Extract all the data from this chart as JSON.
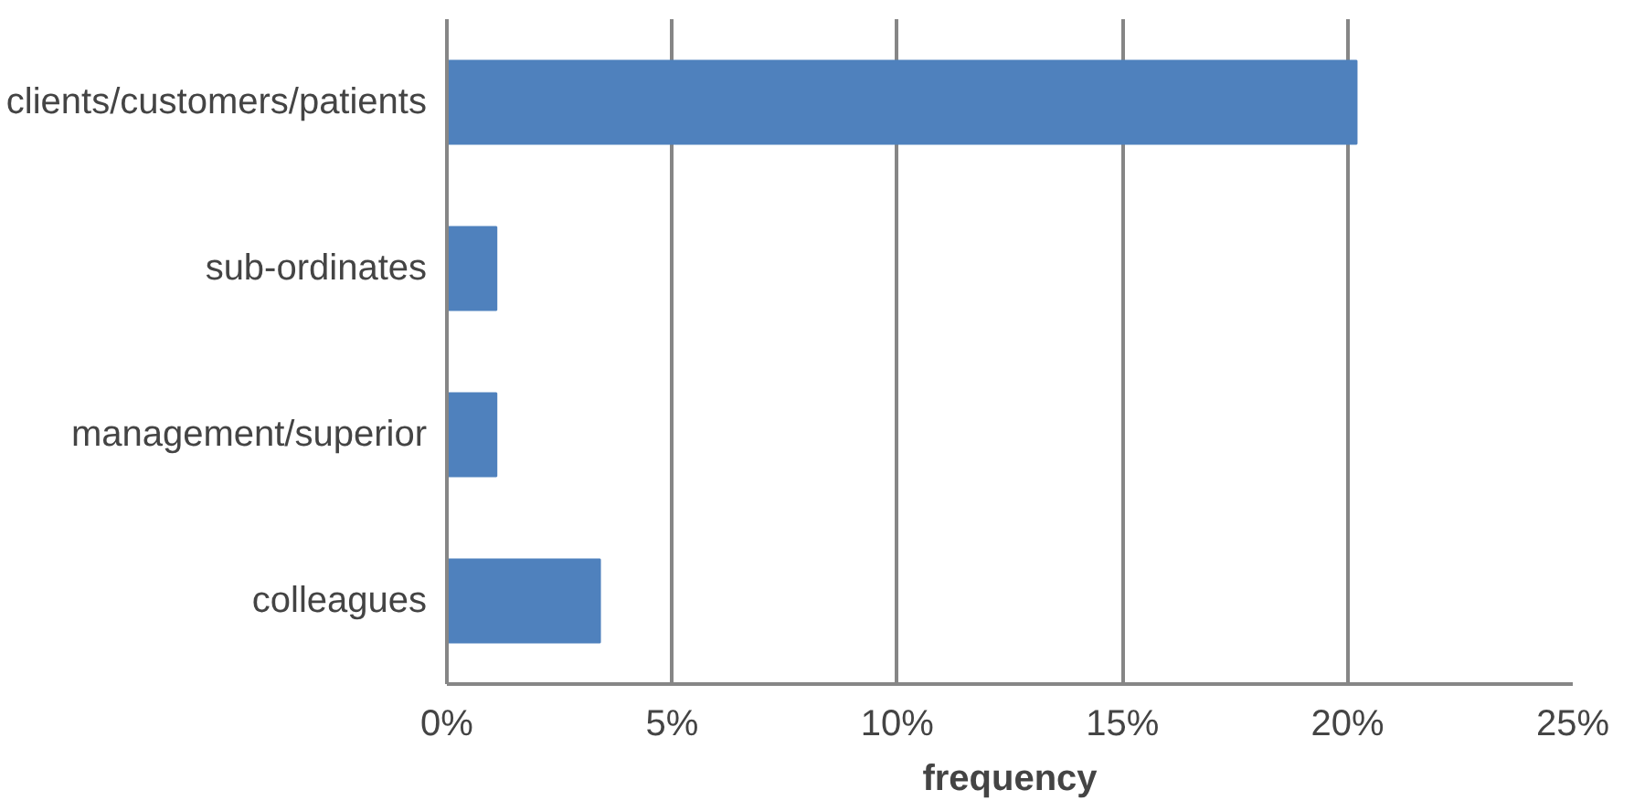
{
  "chart_data": {
    "type": "bar",
    "orientation": "horizontal",
    "xlabel": "frequency",
    "categories": [
      "clients/customers/patients",
      "sub-ordinates",
      "management/superior",
      "colleagues"
    ],
    "values": [
      20.2,
      1.1,
      1.1,
      3.4
    ],
    "color": "#4f81bd",
    "xlim": [
      0,
      25
    ],
    "xticks": [
      {
        "value": 0,
        "label": "0%"
      },
      {
        "value": 5,
        "label": "5%"
      },
      {
        "value": 10,
        "label": "10%"
      },
      {
        "value": 15,
        "label": "15%"
      },
      {
        "value": 20,
        "label": "20%"
      },
      {
        "value": 25,
        "label": "25%"
      }
    ],
    "grid": "x"
  }
}
